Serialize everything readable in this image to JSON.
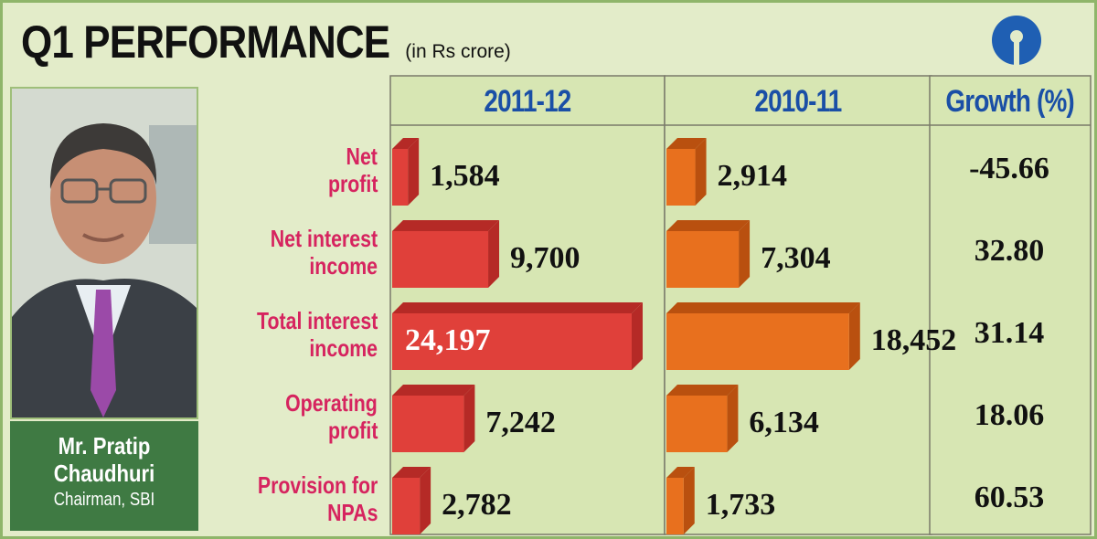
{
  "header": {
    "title_q": "Q1",
    "title_rest": " PERFORMANCE",
    "subtitle": "(in Rs crore)"
  },
  "logo": {
    "icon": "sbi-logo-icon",
    "color": "#1f5fb3"
  },
  "person": {
    "name_line1": "Mr. Pratip",
    "name_line2": "Chaudhuri",
    "role": "Chairman, SBI"
  },
  "colors": {
    "bar_2011": "#e0403a",
    "bar_2011_top": "#b52a26",
    "bar_2010": "#e8701e",
    "bar_2010_top": "#b9500f",
    "label_pink": "#d6245f",
    "header_blue": "#1a4fa6",
    "panel_green": "#3f7a43"
  },
  "chart_data": {
    "type": "bar",
    "title": "Q1 PERFORMANCE",
    "subtitle": "(in Rs crore)",
    "columns": [
      "2011-12",
      "2010-11",
      "Growth (%)"
    ],
    "categories": [
      [
        "Net",
        "profit"
      ],
      [
        "Net interest",
        "income"
      ],
      [
        "Total interest",
        "income"
      ],
      [
        "Operating",
        "profit"
      ],
      [
        "Provision for",
        "NPAs"
      ]
    ],
    "series": [
      {
        "name": "2011-12",
        "values": [
          1584,
          9700,
          24197,
          7242,
          2782
        ],
        "labels": [
          "1,584",
          "9,700",
          "24,197",
          "7,242",
          "2,782"
        ]
      },
      {
        "name": "2010-11",
        "values": [
          2914,
          7304,
          18452,
          6134,
          1733
        ],
        "labels": [
          "2,914",
          "7,304",
          "18,452",
          "6,134",
          "1,733"
        ]
      }
    ],
    "growth": [
      "-45.66",
      "32.80",
      "31.14",
      "18.06",
      "60.53"
    ]
  }
}
